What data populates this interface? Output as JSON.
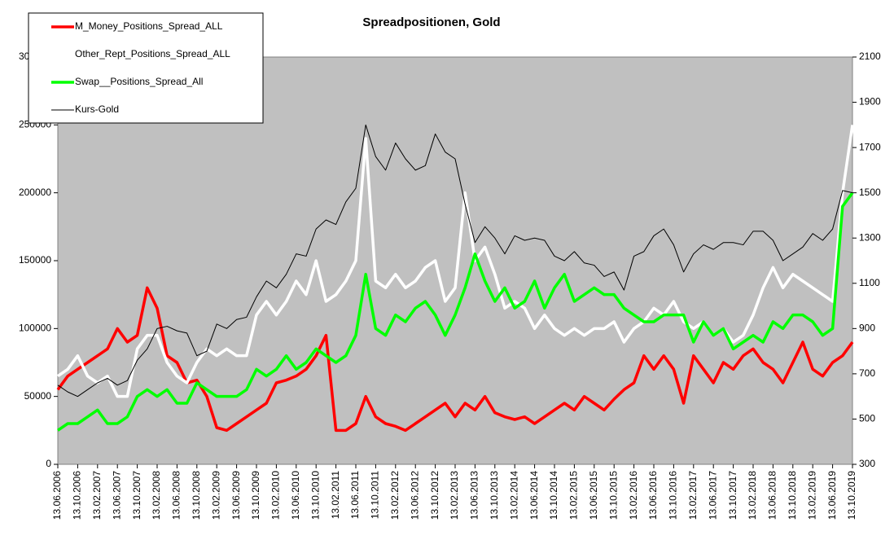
{
  "chart_data": {
    "type": "line",
    "title": "Spreadpositionen, Gold",
    "categories": [
      "13.06.2006",
      null,
      "13.10.2006",
      null,
      "13.02.2007",
      null,
      "13.06.2007",
      null,
      "13.10.2007",
      null,
      "13.02.2008",
      null,
      "13.06.2008",
      null,
      "13.10.2008",
      null,
      "13.02.2009",
      null,
      "13.06.2009",
      null,
      "13.10.2009",
      null,
      "13.02.2010",
      null,
      "13.06.2010",
      null,
      "13.10.2010",
      null,
      "13.02.2011",
      null,
      "13.06.2011",
      null,
      "13.10.2011",
      null,
      "13.02.2012",
      null,
      "13.06.2012",
      null,
      "13.10.2012",
      null,
      "13.02.2013",
      null,
      "13.06.2013",
      null,
      "13.10.2013",
      null,
      "13.02.2014",
      null,
      "13.06.2014",
      null,
      "13.10.2014",
      null,
      "13.02.2015",
      null,
      "13.06.2015",
      null,
      "13.10.2015",
      null,
      "13.02.2016",
      null,
      "13.06.2016",
      null,
      "13.10.2016",
      null,
      "13.02.2017",
      null,
      "13.06.2017",
      null,
      "13.10.2017",
      null,
      "13.02.2018",
      null,
      "13.06.2018",
      null,
      "13.10.2018",
      null,
      "13.02.2019",
      null,
      "13.06.2019",
      null,
      "13.10.2019"
    ],
    "series": [
      {
        "name": "M_Money_Positions_Spread_ALL",
        "color": "#ff0000",
        "width": 3.5,
        "values": [
          55000,
          65000,
          70000,
          75000,
          80000,
          85000,
          100000,
          90000,
          95000,
          130000,
          115000,
          80000,
          75000,
          60000,
          62000,
          50000,
          27000,
          25000,
          30000,
          35000,
          40000,
          45000,
          60000,
          62000,
          65000,
          70000,
          80000,
          95000,
          25000,
          25000,
          30000,
          50000,
          35000,
          30000,
          28000,
          25000,
          30000,
          35000,
          40000,
          45000,
          35000,
          45000,
          40000,
          50000,
          38000,
          35000,
          33000,
          35000,
          30000,
          35000,
          40000,
          45000,
          40000,
          50000,
          45000,
          40000,
          48000,
          55000,
          60000,
          80000,
          70000,
          80000,
          70000,
          45000,
          80000,
          70000,
          60000,
          75000,
          70000,
          80000,
          85000,
          75000,
          70000,
          60000,
          75000,
          90000,
          70000,
          65000,
          75000,
          80000,
          90000
        ]
      },
      {
        "name": "Other_Rept_Positions_Spread_ALL",
        "color": "#ffffff",
        "width": 3.5,
        "values": [
          65000,
          70000,
          80000,
          65000,
          60000,
          65000,
          50000,
          50000,
          85000,
          95000,
          95000,
          75000,
          65000,
          60000,
          75000,
          85000,
          80000,
          85000,
          80000,
          80000,
          110000,
          120000,
          110000,
          120000,
          135000,
          125000,
          150000,
          120000,
          125000,
          135000,
          150000,
          240000,
          135000,
          130000,
          140000,
          130000,
          135000,
          145000,
          150000,
          120000,
          130000,
          200000,
          150000,
          160000,
          140000,
          115000,
          120000,
          115000,
          100000,
          110000,
          100000,
          95000,
          100000,
          95000,
          100000,
          100000,
          105000,
          90000,
          100000,
          105000,
          115000,
          110000,
          120000,
          105000,
          100000,
          105000,
          95000,
          100000,
          90000,
          95000,
          110000,
          130000,
          145000,
          130000,
          140000,
          135000,
          130000,
          125000,
          120000,
          200000,
          250000
        ]
      },
      {
        "name": "Swap__Positions_Spread_All",
        "color": "#00ff00",
        "width": 3.5,
        "values": [
          25000,
          30000,
          30000,
          35000,
          40000,
          30000,
          30000,
          35000,
          50000,
          55000,
          50000,
          55000,
          45000,
          45000,
          60000,
          55000,
          50000,
          50000,
          50000,
          55000,
          70000,
          65000,
          70000,
          80000,
          70000,
          75000,
          85000,
          80000,
          75000,
          80000,
          95000,
          140000,
          100000,
          95000,
          110000,
          105000,
          115000,
          120000,
          110000,
          95000,
          110000,
          130000,
          155000,
          135000,
          120000,
          130000,
          115000,
          120000,
          135000,
          115000,
          130000,
          140000,
          120000,
          125000,
          130000,
          125000,
          125000,
          115000,
          110000,
          105000,
          105000,
          110000,
          110000,
          110000,
          90000,
          105000,
          95000,
          100000,
          85000,
          90000,
          95000,
          90000,
          105000,
          100000,
          110000,
          110000,
          105000,
          95000,
          100000,
          190000,
          200000
        ]
      },
      {
        "name": "Kurs-Gold",
        "color": "#000000",
        "width": 1,
        "axis": "y2",
        "values": [
          650,
          620,
          600,
          630,
          660,
          680,
          650,
          670,
          760,
          810,
          900,
          910,
          890,
          880,
          780,
          800,
          920,
          900,
          940,
          950,
          1040,
          1110,
          1080,
          1140,
          1230,
          1220,
          1340,
          1380,
          1360,
          1460,
          1520,
          1800,
          1660,
          1600,
          1720,
          1650,
          1600,
          1620,
          1760,
          1680,
          1650,
          1450,
          1280,
          1350,
          1300,
          1230,
          1310,
          1290,
          1300,
          1290,
          1220,
          1200,
          1240,
          1190,
          1180,
          1130,
          1150,
          1070,
          1220,
          1240,
          1310,
          1340,
          1270,
          1150,
          1230,
          1270,
          1250,
          1280,
          1280,
          1270,
          1330,
          1330,
          1290,
          1200,
          1230,
          1260,
          1320,
          1290,
          1340,
          1510,
          1500
        ]
      }
    ],
    "ylim": [
      0,
      300000
    ],
    "yticks": [
      0,
      50000,
      100000,
      150000,
      200000,
      250000,
      300000
    ],
    "y2lim": [
      300,
      2100
    ],
    "y2ticks": [
      300,
      500,
      700,
      900,
      1100,
      1300,
      1500,
      1700,
      1900,
      2100
    ],
    "plot_background": "#c0c0c0",
    "legend": "upper left"
  }
}
